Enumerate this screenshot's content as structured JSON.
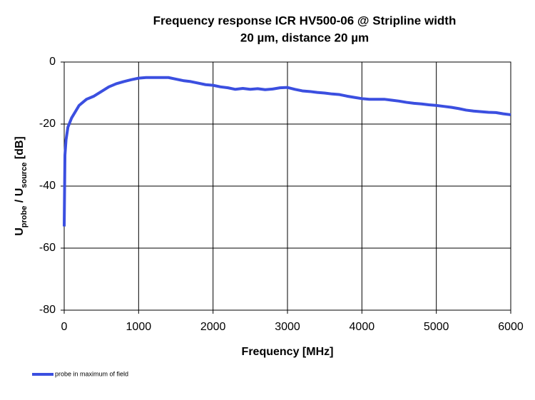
{
  "chart_data": {
    "type": "line",
    "title": [
      "Frequency response ICR HV500-06 @ Stripline width",
      "20 µm, distance 20 µm"
    ],
    "xlabel": "Frequency [MHz]",
    "ylabel": [
      {
        "text": "U"
      },
      {
        "text": "probe",
        "sub": true
      },
      {
        "text": " / U"
      },
      {
        "text": "source",
        "sub": true
      },
      {
        "text": " [dB]"
      }
    ],
    "x": [
      0,
      10,
      25,
      50,
      100,
      150,
      200,
      300,
      400,
      500,
      600,
      700,
      800,
      900,
      1000,
      1100,
      1200,
      1300,
      1400,
      1500,
      1600,
      1700,
      1800,
      1900,
      2000,
      2100,
      2200,
      2300,
      2400,
      2500,
      2600,
      2700,
      2800,
      2900,
      3000,
      3100,
      3200,
      3300,
      3400,
      3500,
      3600,
      3700,
      3800,
      3900,
      4000,
      4100,
      4200,
      4300,
      4400,
      4500,
      4600,
      4700,
      4800,
      4900,
      5000,
      5100,
      5200,
      5300,
      5400,
      5500,
      5600,
      5700,
      5800,
      5900,
      6000
    ],
    "series": [
      {
        "name": "probe in maximum of field",
        "color": "#3b4fe0",
        "values": [
          -53,
          -30,
          -25,
          -21,
          -18,
          -16,
          -14,
          -12,
          -11,
          -9.5,
          -8,
          -7,
          -6.3,
          -5.7,
          -5.2,
          -5,
          -5,
          -5,
          -5,
          -5.5,
          -6,
          -6.3,
          -6.8,
          -7.3,
          -7.5,
          -8,
          -8.3,
          -8.8,
          -8.5,
          -8.8,
          -8.6,
          -8.9,
          -8.7,
          -8.3,
          -8.2,
          -8.8,
          -9.3,
          -9.5,
          -9.8,
          -10,
          -10.3,
          -10.5,
          -11,
          -11.4,
          -11.8,
          -12,
          -12,
          -12,
          -12.3,
          -12.6,
          -13,
          -13.3,
          -13.5,
          -13.8,
          -14,
          -14.3,
          -14.6,
          -15,
          -15.5,
          -15.8,
          -16,
          -16.2,
          -16.3,
          -16.7,
          -17
        ]
      }
    ],
    "xlim": [
      0,
      6000
    ],
    "xticks": [
      0,
      1000,
      2000,
      3000,
      4000,
      5000,
      6000
    ],
    "ylim": [
      -80,
      0
    ],
    "yticks": [
      -80,
      -60,
      -40,
      -20,
      0
    ],
    "grid": true,
    "legend": "bottom-left"
  }
}
